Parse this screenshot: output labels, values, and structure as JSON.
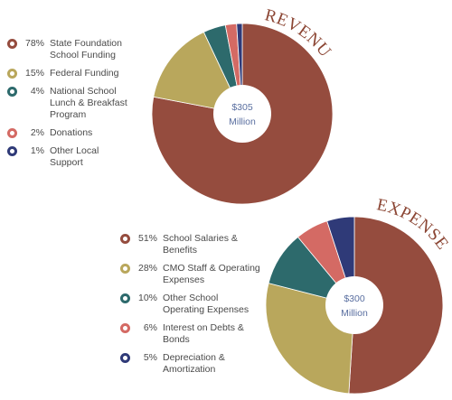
{
  "chart_data": [
    {
      "type": "pie",
      "title": "REVENUE",
      "center_label": [
        "$305",
        "Million"
      ],
      "slices": [
        {
          "pct_label": "78%",
          "label": "State Foundation School Funding",
          "label_lines": [
            "State Foundation",
            "School Funding"
          ],
          "value": 78,
          "color": "#954c3e"
        },
        {
          "pct_label": "15%",
          "label": "Federal Funding",
          "label_lines": [
            "Federal Funding"
          ],
          "value": 15,
          "color": "#b9a75c"
        },
        {
          "pct_label": "4%",
          "label": "National School Lunch & Breakfast Program",
          "label_lines": [
            "National School",
            "Lunch & Breakfast",
            "Program"
          ],
          "value": 4,
          "color": "#2d6a6c"
        },
        {
          "pct_label": "2%",
          "label": "Donations",
          "label_lines": [
            "Donations"
          ],
          "value": 2,
          "color": "#d46a64"
        },
        {
          "pct_label": "1%",
          "label": "Other Local Support",
          "label_lines": [
            "Other Local",
            "Support"
          ],
          "value": 1,
          "color": "#2f3a78"
        }
      ]
    },
    {
      "type": "pie",
      "title": "EXPENSES",
      "center_label": [
        "$300",
        "Million"
      ],
      "slices": [
        {
          "pct_label": "51%",
          "label": "School Salaries & Benefits",
          "label_lines": [
            "School Salaries &",
            "Benefits"
          ],
          "value": 51,
          "color": "#954c3e"
        },
        {
          "pct_label": "28%",
          "label": "CMO Staff & Operating Expenses",
          "label_lines": [
            "CMO Staff & Operating",
            "Expenses"
          ],
          "value": 28,
          "color": "#b9a75c"
        },
        {
          "pct_label": "10%",
          "label": "Other School Operating Expenses",
          "label_lines": [
            "Other School",
            "Operating Expenses"
          ],
          "value": 10,
          "color": "#2d6a6c"
        },
        {
          "pct_label": "6%",
          "label": "Interest on Debts & Bonds",
          "label_lines": [
            "Interest  on Debts &",
            "Bonds"
          ],
          "value": 6,
          "color": "#d46a64"
        },
        {
          "pct_label": "5%",
          "label": "Depreciation & Amortization",
          "label_lines": [
            "Depreciation &",
            "Amortization"
          ],
          "value": 5,
          "color": "#2f3a78"
        }
      ]
    }
  ]
}
